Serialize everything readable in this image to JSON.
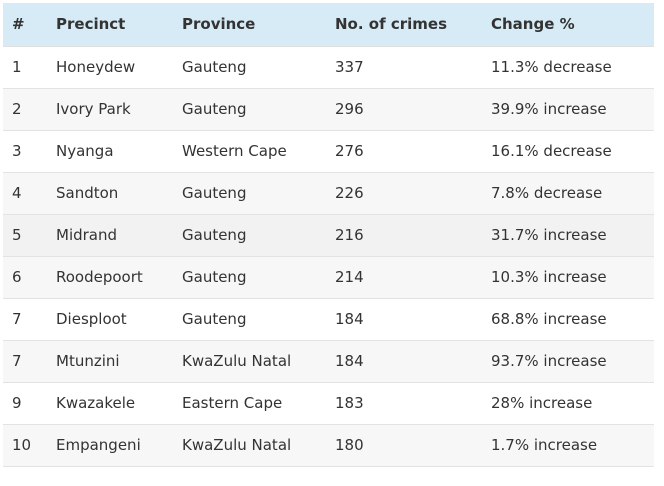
{
  "table": {
    "headers": [
      "#",
      "Precinct",
      "Province",
      "No. of crimes",
      "Change %"
    ],
    "rows": [
      [
        "1",
        "Honeydew",
        "Gauteng",
        "337",
        "11.3% decrease"
      ],
      [
        "2",
        "Ivory Park",
        "Gauteng",
        "296",
        "39.9% increase"
      ],
      [
        "3",
        "Nyanga",
        "Western Cape",
        "276",
        "16.1% decrease"
      ],
      [
        "4",
        "Sandton",
        "Gauteng",
        "226",
        "7.8% decrease"
      ],
      [
        "5",
        "Midrand",
        "Gauteng",
        "216",
        "31.7% increase"
      ],
      [
        "6",
        "Roodepoort",
        "Gauteng",
        "214",
        "10.3% increase"
      ],
      [
        "7",
        "Diesploot",
        "Gauteng",
        "184",
        "68.8% increase"
      ],
      [
        "7",
        "Mtunzini",
        "KwaZulu Natal",
        "184",
        "93.7% increase"
      ],
      [
        "9",
        "Kwazakele",
        "Eastern Cape",
        "183",
        "28% increase"
      ],
      [
        "10",
        "Empangeni",
        "KwaZulu Natal",
        "180",
        "1.7% increase"
      ]
    ]
  },
  "colors": {
    "header_bg": "#d6ebf5",
    "row_alt_bg": "#f7f7f7",
    "row_shade_bg": "#f2f2f2",
    "border": "#e3e3e3",
    "text": "#333333"
  }
}
